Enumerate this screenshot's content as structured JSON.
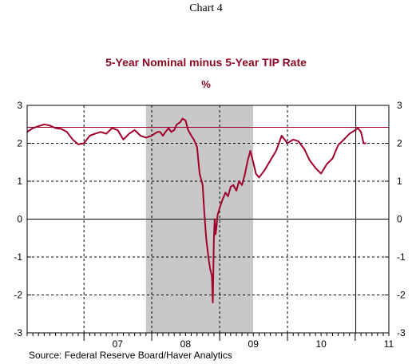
{
  "chart_data": {
    "type": "line",
    "header": "Chart 4",
    "title": "5-Year Nominal minus 5-Year TIP Rate",
    "unit": "%",
    "source": "Source:  Federal Reserve Board/Haver Analytics",
    "x_tick_labels": [
      "07",
      "08",
      "09",
      "10",
      "11"
    ],
    "y_ticks": [
      3,
      2,
      1,
      0,
      -1,
      -2,
      -3
    ],
    "ylim": [
      -3,
      3
    ],
    "xlim": [
      "2006-03-01",
      "2011-07-01"
    ],
    "grid": true,
    "shaded_region": {
      "start": "2007-12-01",
      "end": "2009-06-30"
    },
    "reference_line": 2.42,
    "marker_date": "2011-01-04",
    "series": [
      {
        "color": "#a1002b",
        "x": [
          "2006-03-01",
          "2006-04-01",
          "2006-05-01",
          "2006-06-01",
          "2006-07-01",
          "2006-08-01",
          "2006-09-01",
          "2006-10-01",
          "2006-11-01",
          "2006-12-01",
          "2007-01-01",
          "2007-02-01",
          "2007-03-01",
          "2007-04-01",
          "2007-05-01",
          "2007-06-01",
          "2007-07-01",
          "2007-08-01",
          "2007-09-01",
          "2007-10-01",
          "2007-11-01",
          "2007-12-01",
          "2008-01-01",
          "2008-01-15",
          "2008-02-01",
          "2008-02-15",
          "2008-03-01",
          "2008-03-15",
          "2008-04-01",
          "2008-04-15",
          "2008-05-01",
          "2008-05-15",
          "2008-06-01",
          "2008-06-15",
          "2008-07-01",
          "2008-07-15",
          "2008-08-01",
          "2008-08-15",
          "2008-09-01",
          "2008-09-15",
          "2008-10-01",
          "2008-10-10",
          "2008-10-20",
          "2008-11-01",
          "2008-11-10",
          "2008-11-20",
          "2008-11-25",
          "2008-12-01",
          "2008-12-05",
          "2008-12-10",
          "2008-12-15",
          "2008-12-20",
          "2009-01-01",
          "2009-01-15",
          "2009-02-01",
          "2009-02-15",
          "2009-03-01",
          "2009-03-15",
          "2009-04-01",
          "2009-04-15",
          "2009-05-01",
          "2009-05-15",
          "2009-06-01",
          "2009-06-15",
          "2009-07-01",
          "2009-07-15",
          "2009-08-01",
          "2009-09-01",
          "2009-10-01",
          "2009-11-01",
          "2009-12-01",
          "2010-01-01",
          "2010-02-01",
          "2010-03-01",
          "2010-04-01",
          "2010-05-01",
          "2010-06-01",
          "2010-07-01",
          "2010-08-01",
          "2010-09-01",
          "2010-10-01",
          "2010-11-01",
          "2010-12-01",
          "2011-01-01",
          "2011-01-15",
          "2011-02-01",
          "2011-02-15",
          "2011-03-01"
        ],
        "values": [
          2.3,
          2.4,
          2.45,
          2.5,
          2.47,
          2.4,
          2.38,
          2.3,
          2.1,
          1.97,
          2.0,
          2.2,
          2.25,
          2.3,
          2.25,
          2.4,
          2.35,
          2.1,
          2.25,
          2.35,
          2.2,
          2.15,
          2.2,
          2.25,
          2.3,
          2.3,
          2.2,
          2.3,
          2.4,
          2.3,
          2.35,
          2.5,
          2.55,
          2.65,
          2.6,
          2.35,
          2.2,
          2.1,
          1.9,
          1.2,
          0.9,
          0.2,
          -0.5,
          -1.0,
          -1.3,
          -1.5,
          -2.2,
          -0.5,
          0.0,
          -0.4,
          -0.2,
          0.1,
          0.3,
          0.5,
          0.7,
          0.6,
          0.85,
          0.9,
          0.75,
          1.0,
          0.9,
          1.15,
          1.55,
          1.8,
          1.5,
          1.2,
          1.1,
          1.3,
          1.55,
          1.8,
          2.2,
          2.0,
          2.1,
          2.05,
          1.85,
          1.55,
          1.35,
          1.2,
          1.45,
          1.6,
          1.95,
          2.1,
          2.25,
          2.35,
          2.4,
          2.3,
          2.0,
          2.0
        ]
      }
    ]
  }
}
